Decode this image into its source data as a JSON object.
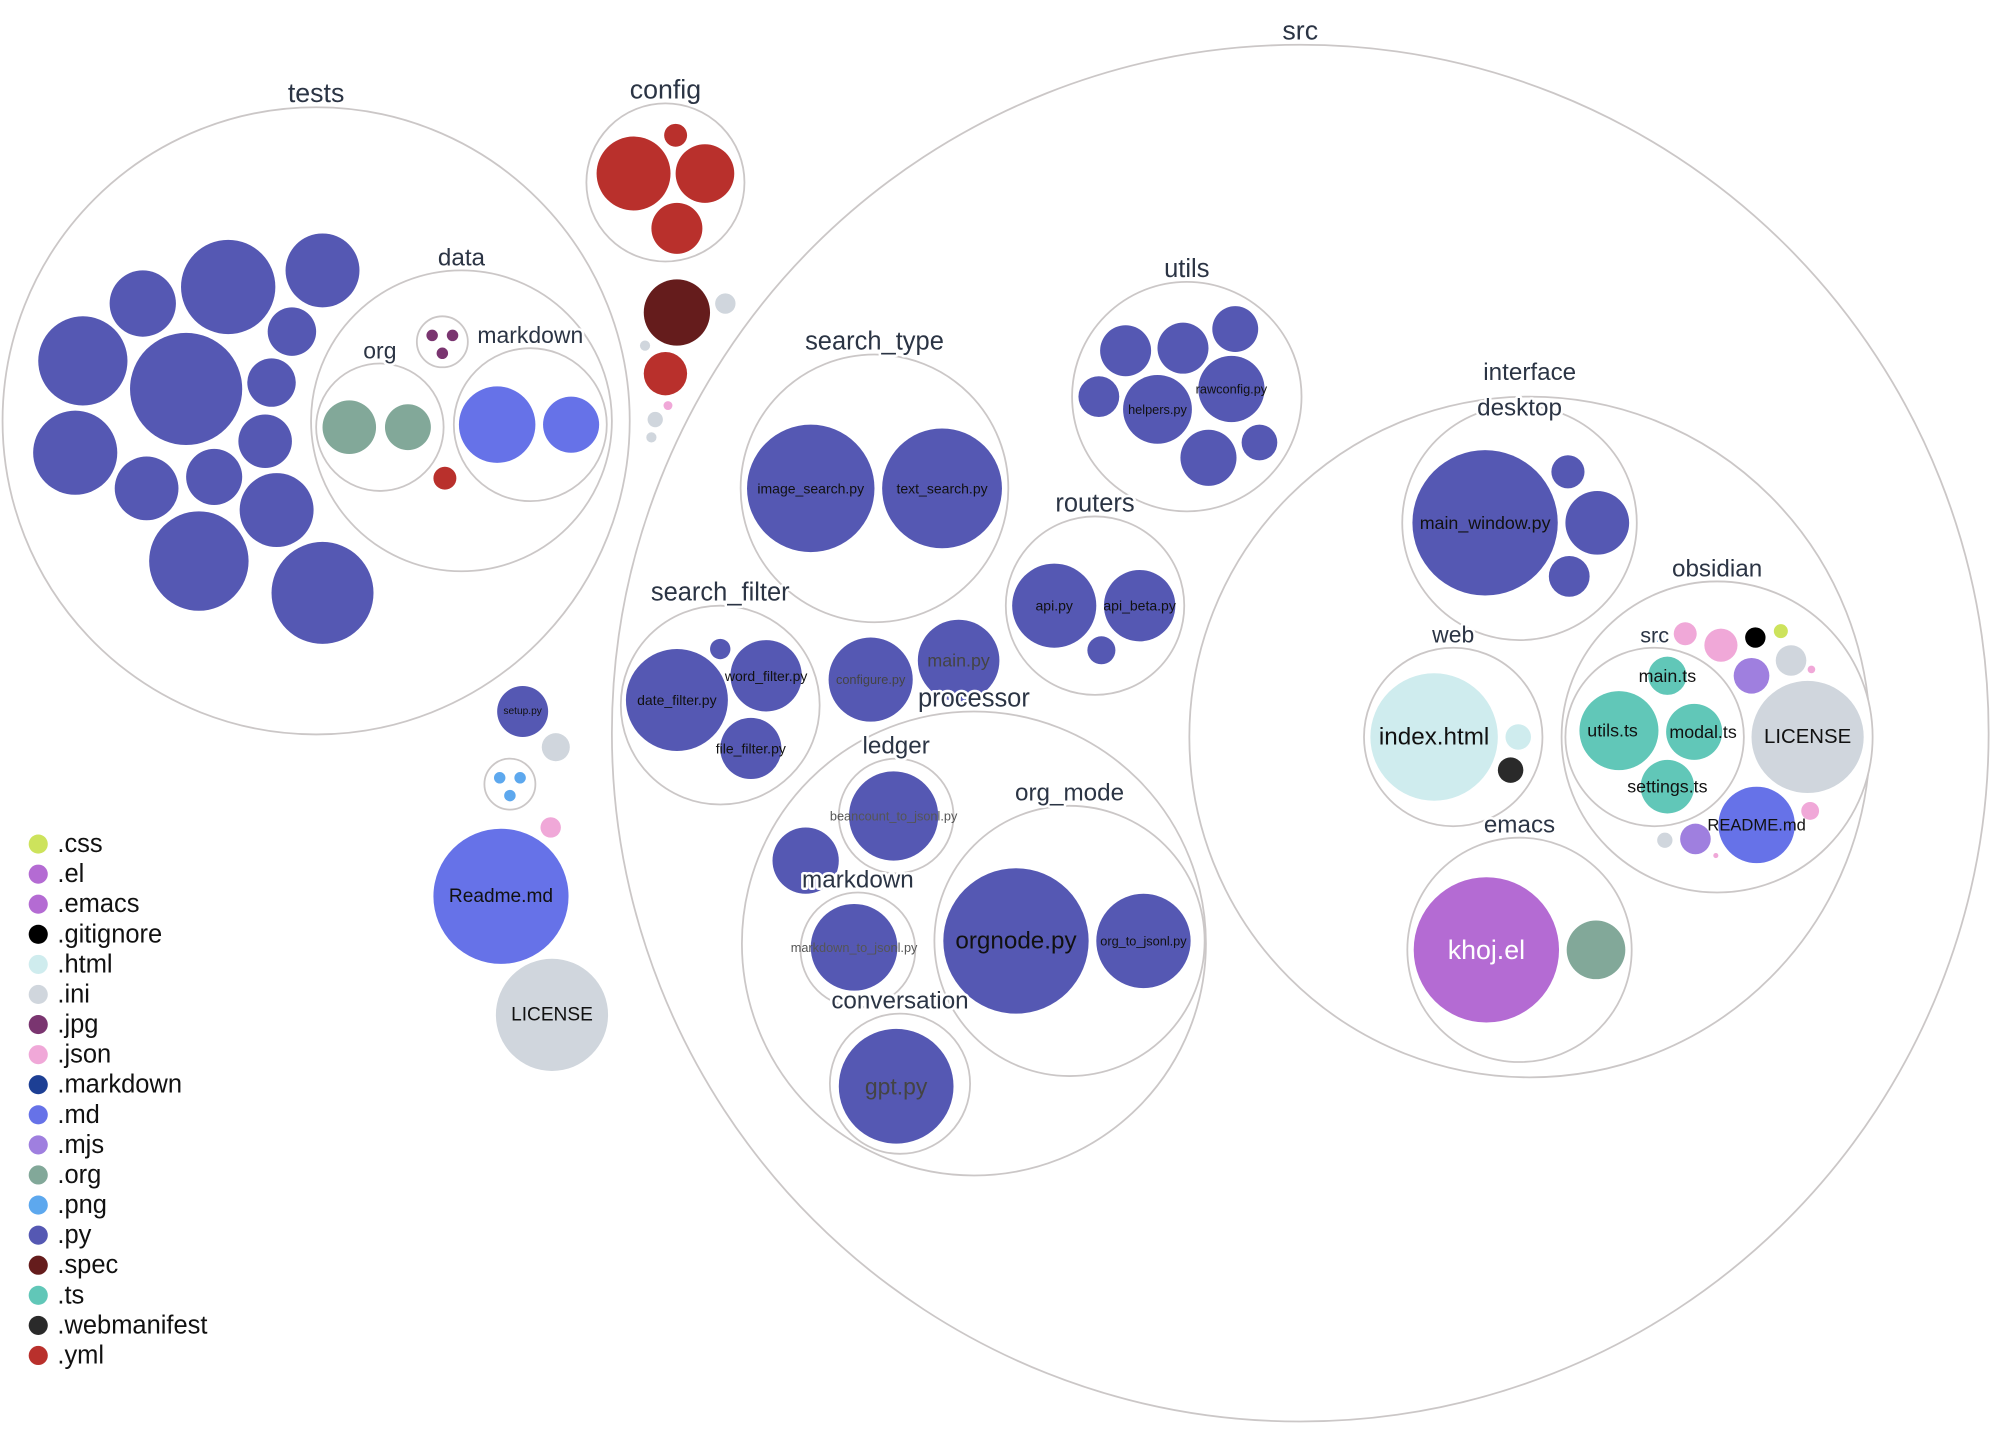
{
  "colors": {
    ".css": "#cde35c",
    ".el": "#b46bd3",
    ".emacs": "#b46bd3",
    ".gitignore": "#000000",
    ".html": "#cfecee",
    ".ini": "#d0d6dd",
    ".jpg": "#7a3570",
    ".json": "#f0a8d8",
    ".markdown": "#1d3f94",
    ".md": "#6672e8",
    ".mjs": "#9f7fdf",
    ".org": "#82a899",
    ".png": "#5da8ee",
    ".py": "#5558b3",
    ".spec": "#651c1c",
    ".ts": "#61c7b8",
    ".webmanifest": "#2a2a2a",
    ".yml": "#b9302c"
  },
  "legend": [
    ".css",
    ".el",
    ".emacs",
    ".gitignore",
    ".html",
    ".ini",
    ".jpg",
    ".json",
    ".markdown",
    ".md",
    ".mjs",
    ".org",
    ".png",
    ".py",
    ".spec",
    ".ts",
    ".webmanifest",
    ".yml"
  ],
  "folders": [
    {
      "name": "tests"
    },
    {
      "name": "data"
    },
    {
      "name": "org"
    },
    {
      "name": "markdown"
    },
    {
      "name": ""
    },
    {
      "name": "config"
    },
    {
      "name": "src"
    },
    {
      "name": "search_type"
    },
    {
      "name": "utils"
    },
    {
      "name": "routers"
    },
    {
      "name": "search_filter"
    },
    {
      "name": "processor"
    },
    {
      "name": "ledger"
    },
    {
      "name": "markdown"
    },
    {
      "name": "org_mode"
    },
    {
      "name": "conversation"
    },
    {
      "name": "interface"
    },
    {
      "name": "desktop"
    },
    {
      "name": "web"
    },
    {
      "name": "obsidian"
    },
    {
      "name": "src"
    },
    {
      "name": "emacs"
    },
    {
      "name": ""
    }
  ],
  "files": [
    {
      "name": "",
      "ext": ".py"
    },
    {
      "name": "",
      "ext": ".py"
    },
    {
      "name": "",
      "ext": ".py"
    },
    {
      "name": "",
      "ext": ".py"
    },
    {
      "name": "",
      "ext": ".py"
    },
    {
      "name": "",
      "ext": ".py"
    },
    {
      "name": "",
      "ext": ".py"
    },
    {
      "name": "",
      "ext": ".py"
    },
    {
      "name": "",
      "ext": ".py"
    },
    {
      "name": "",
      "ext": ".py"
    },
    {
      "name": "",
      "ext": ".py"
    },
    {
      "name": "",
      "ext": ".py"
    },
    {
      "name": "",
      "ext": ".py"
    },
    {
      "name": "",
      "ext": ".py"
    },
    {
      "name": "",
      "ext": ".org"
    },
    {
      "name": "",
      "ext": ".org"
    },
    {
      "name": "",
      "ext": ".md"
    },
    {
      "name": "",
      "ext": ".md"
    },
    {
      "name": "",
      "ext": ".yml"
    },
    {
      "name": "",
      "ext": ".jpg"
    },
    {
      "name": "",
      "ext": ".jpg"
    },
    {
      "name": "",
      "ext": ".jpg"
    },
    {
      "name": "",
      "ext": ".yml"
    },
    {
      "name": "",
      "ext": ".yml"
    },
    {
      "name": "",
      "ext": ".yml"
    },
    {
      "name": "",
      "ext": ".yml"
    },
    {
      "name": "",
      "ext": ".spec"
    },
    {
      "name": "",
      "ext": ".ini"
    },
    {
      "name": "",
      "ext": ".yml"
    },
    {
      "name": "",
      "ext": ".ini"
    },
    {
      "name": "",
      "ext": ".ini"
    },
    {
      "name": "",
      "ext": ".ini"
    },
    {
      "name": "",
      "ext": ".json"
    },
    {
      "name": "setup.py",
      "ext": ".py"
    },
    {
      "name": "",
      "ext": ".ini"
    },
    {
      "name": "",
      "ext": ".json"
    },
    {
      "name": "Readme.md",
      "ext": ".md"
    },
    {
      "name": "LICENSE",
      "ext": ".ini"
    },
    {
      "name": "",
      "ext": ".png"
    },
    {
      "name": "",
      "ext": ".png"
    },
    {
      "name": "",
      "ext": ".png"
    },
    {
      "name": "image_search.py",
      "ext": ".py"
    },
    {
      "name": "text_search.py",
      "ext": ".py"
    },
    {
      "name": "",
      "ext": ".py"
    },
    {
      "name": "",
      "ext": ".py"
    },
    {
      "name": "",
      "ext": ".py"
    },
    {
      "name": "",
      "ext": ".py"
    },
    {
      "name": "helpers.py",
      "ext": ".py"
    },
    {
      "name": "rawconfig.py",
      "ext": ".py"
    },
    {
      "name": "",
      "ext": ".py"
    },
    {
      "name": "",
      "ext": ".py"
    },
    {
      "name": "api.py",
      "ext": ".py"
    },
    {
      "name": "api_beta.py",
      "ext": ".py"
    },
    {
      "name": "",
      "ext": ".py"
    },
    {
      "name": "date_filter.py",
      "ext": ".py"
    },
    {
      "name": "word_filter.py",
      "ext": ".py"
    },
    {
      "name": "file_filter.py",
      "ext": ".py"
    },
    {
      "name": "",
      "ext": ".py"
    },
    {
      "name": "configure.py",
      "ext": ".py"
    },
    {
      "name": "main.py",
      "ext": ".py"
    },
    {
      "name": "beancount_to_jsonl.py",
      "ext": ".py"
    },
    {
      "name": "",
      "ext": ".py"
    },
    {
      "name": "markdown_to_jsonl.py",
      "ext": ".py"
    },
    {
      "name": "orgnode.py",
      "ext": ".py"
    },
    {
      "name": "org_to_jsonl.py",
      "ext": ".py"
    },
    {
      "name": "gpt.py",
      "ext": ".py"
    },
    {
      "name": "main_window.py",
      "ext": ".py"
    },
    {
      "name": "",
      "ext": ".py"
    },
    {
      "name": "",
      "ext": ".py"
    },
    {
      "name": "",
      "ext": ".py"
    },
    {
      "name": "index.html",
      "ext": ".html"
    },
    {
      "name": "",
      "ext": ".html"
    },
    {
      "name": "",
      "ext": ".webmanifest"
    },
    {
      "name": "khoj.el",
      "ext": ".el"
    },
    {
      "name": "",
      "ext": ".org"
    },
    {
      "name": "main.ts",
      "ext": ".ts"
    },
    {
      "name": "utils.ts",
      "ext": ".ts"
    },
    {
      "name": "modal.ts",
      "ext": ".ts"
    },
    {
      "name": "settings.ts",
      "ext": ".ts"
    },
    {
      "name": "LICENSE",
      "ext": ".ini"
    },
    {
      "name": "README.md",
      "ext": ".md"
    },
    {
      "name": "",
      "ext": ".png"
    },
    {
      "name": "",
      "ext": ".json"
    },
    {
      "name": "",
      "ext": ".json"
    },
    {
      "name": "",
      "ext": ".gitignore"
    },
    {
      "name": "",
      "ext": ".css"
    },
    {
      "name": "",
      "ext": ".ini"
    },
    {
      "name": "",
      "ext": ".mjs"
    },
    {
      "name": "",
      "ext": ".json"
    },
    {
      "name": "",
      "ext": ".json"
    },
    {
      "name": "",
      "ext": ".ini"
    },
    {
      "name": "",
      "ext": ".mjs"
    },
    {
      "name": "",
      "ext": ".json"
    }
  ]
}
